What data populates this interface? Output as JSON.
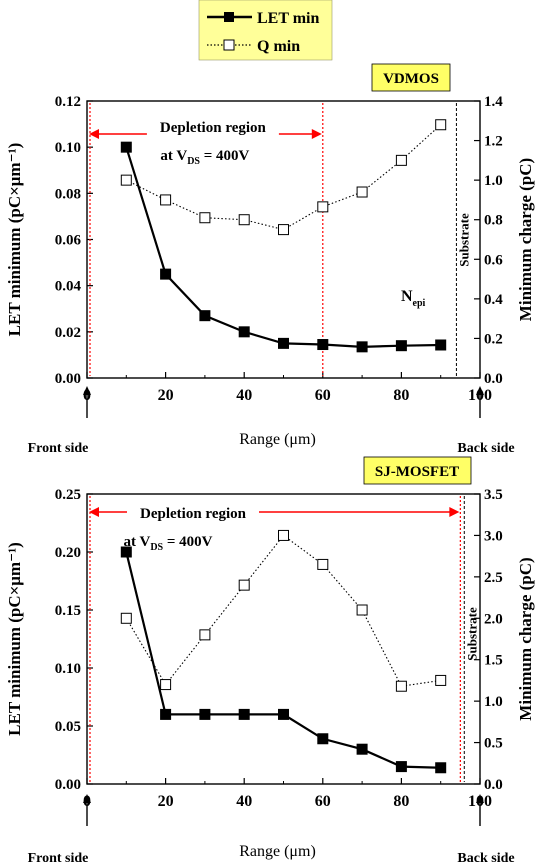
{
  "legend": {
    "items": [
      {
        "label": "LET min",
        "marker": "filled-square",
        "line": "solid"
      },
      {
        "label": "Q min",
        "marker": "open-square",
        "line": "dotted"
      }
    ],
    "background": "#ffff99"
  },
  "colors": {
    "ink": "#000000",
    "red": "#ff0000",
    "badge": "#ffff66"
  },
  "chart_data": [
    {
      "type": "line",
      "title": "VDMOS",
      "xlabel": "Range (μm)",
      "xlim": [
        0,
        100
      ],
      "xticks": [
        0,
        20,
        40,
        60,
        80,
        100
      ],
      "ylabel_left": "LET minimum (pC×μm⁻¹)",
      "ylabel_right": "Minimum charge (pC)",
      "ylim_left": [
        0,
        0.12
      ],
      "yticks_left": [
        "0.00",
        "0.02",
        "0.04",
        "0.06",
        "0.08",
        "0.10",
        "0.12"
      ],
      "ylim_right": [
        0,
        1.4
      ],
      "yticks_right": [
        "0.0",
        "0.2",
        "0.4",
        "0.6",
        "0.8",
        "1.0",
        "1.2",
        "1.4"
      ],
      "front_label": "Front side",
      "back_label": "Back side",
      "depletion": {
        "label": "Depletion region",
        "bias_prefix": "at V",
        "bias_sub": "DS",
        "bias_suffix": " = 400V",
        "x_start": 0,
        "x_end": 60
      },
      "substrate": {
        "label": "Substrate",
        "x": 94
      },
      "annotation": {
        "text": "N",
        "sub": "epi",
        "x": 84,
        "y_right": 0.46
      },
      "series": [
        {
          "name": "LET min",
          "axis": "left",
          "x": [
            10,
            20,
            30,
            40,
            50,
            60,
            70,
            80,
            90
          ],
          "values": [
            0.1,
            0.045,
            0.027,
            0.02,
            0.015,
            0.0145,
            0.0135,
            0.014,
            0.0143
          ]
        },
        {
          "name": "Q min",
          "axis": "right",
          "x": [
            10,
            20,
            30,
            40,
            50,
            60,
            70,
            80,
            90
          ],
          "values": [
            1.0,
            0.9,
            0.81,
            0.8,
            0.75,
            0.865,
            0.94,
            1.1,
            1.28
          ]
        }
      ]
    },
    {
      "type": "line",
      "title": "SJ-MOSFET",
      "xlabel": "Range (μm)",
      "xlim": [
        0,
        100
      ],
      "xticks": [
        0,
        20,
        40,
        60,
        80,
        100
      ],
      "ylabel_left": "LET minimum (pC×μm⁻¹)",
      "ylabel_right": "Minimum charge (pC)",
      "ylim_left": [
        0,
        0.25
      ],
      "yticks_left": [
        "0.00",
        "0.05",
        "0.10",
        "0.15",
        "0.20",
        "0.25"
      ],
      "ylim_right": [
        0,
        3.5
      ],
      "yticks_right": [
        "0.0",
        "0.5",
        "1.0",
        "1.5",
        "2.0",
        "2.5",
        "3.0",
        "3.5"
      ],
      "front_label": "Front side",
      "back_label": "Back side",
      "depletion": {
        "label": "Depletion region",
        "bias_prefix": "at V",
        "bias_sub": "DS",
        "bias_suffix": " = 400V",
        "x_start": 0,
        "x_end": 95
      },
      "substrate": {
        "label": "Substrate",
        "x": 96
      },
      "series": [
        {
          "name": "LET min",
          "axis": "left",
          "x": [
            10,
            20,
            30,
            40,
            50,
            60,
            70,
            80,
            90
          ],
          "values": [
            0.2,
            0.06,
            0.06,
            0.06,
            0.06,
            0.039,
            0.03,
            0.015,
            0.014
          ]
        },
        {
          "name": "Q min",
          "axis": "right",
          "x": [
            10,
            20,
            30,
            40,
            50,
            60,
            70,
            80,
            90
          ],
          "values": [
            2.0,
            1.2,
            1.8,
            2.4,
            3.0,
            2.65,
            2.1,
            1.18,
            1.25
          ]
        }
      ]
    }
  ]
}
